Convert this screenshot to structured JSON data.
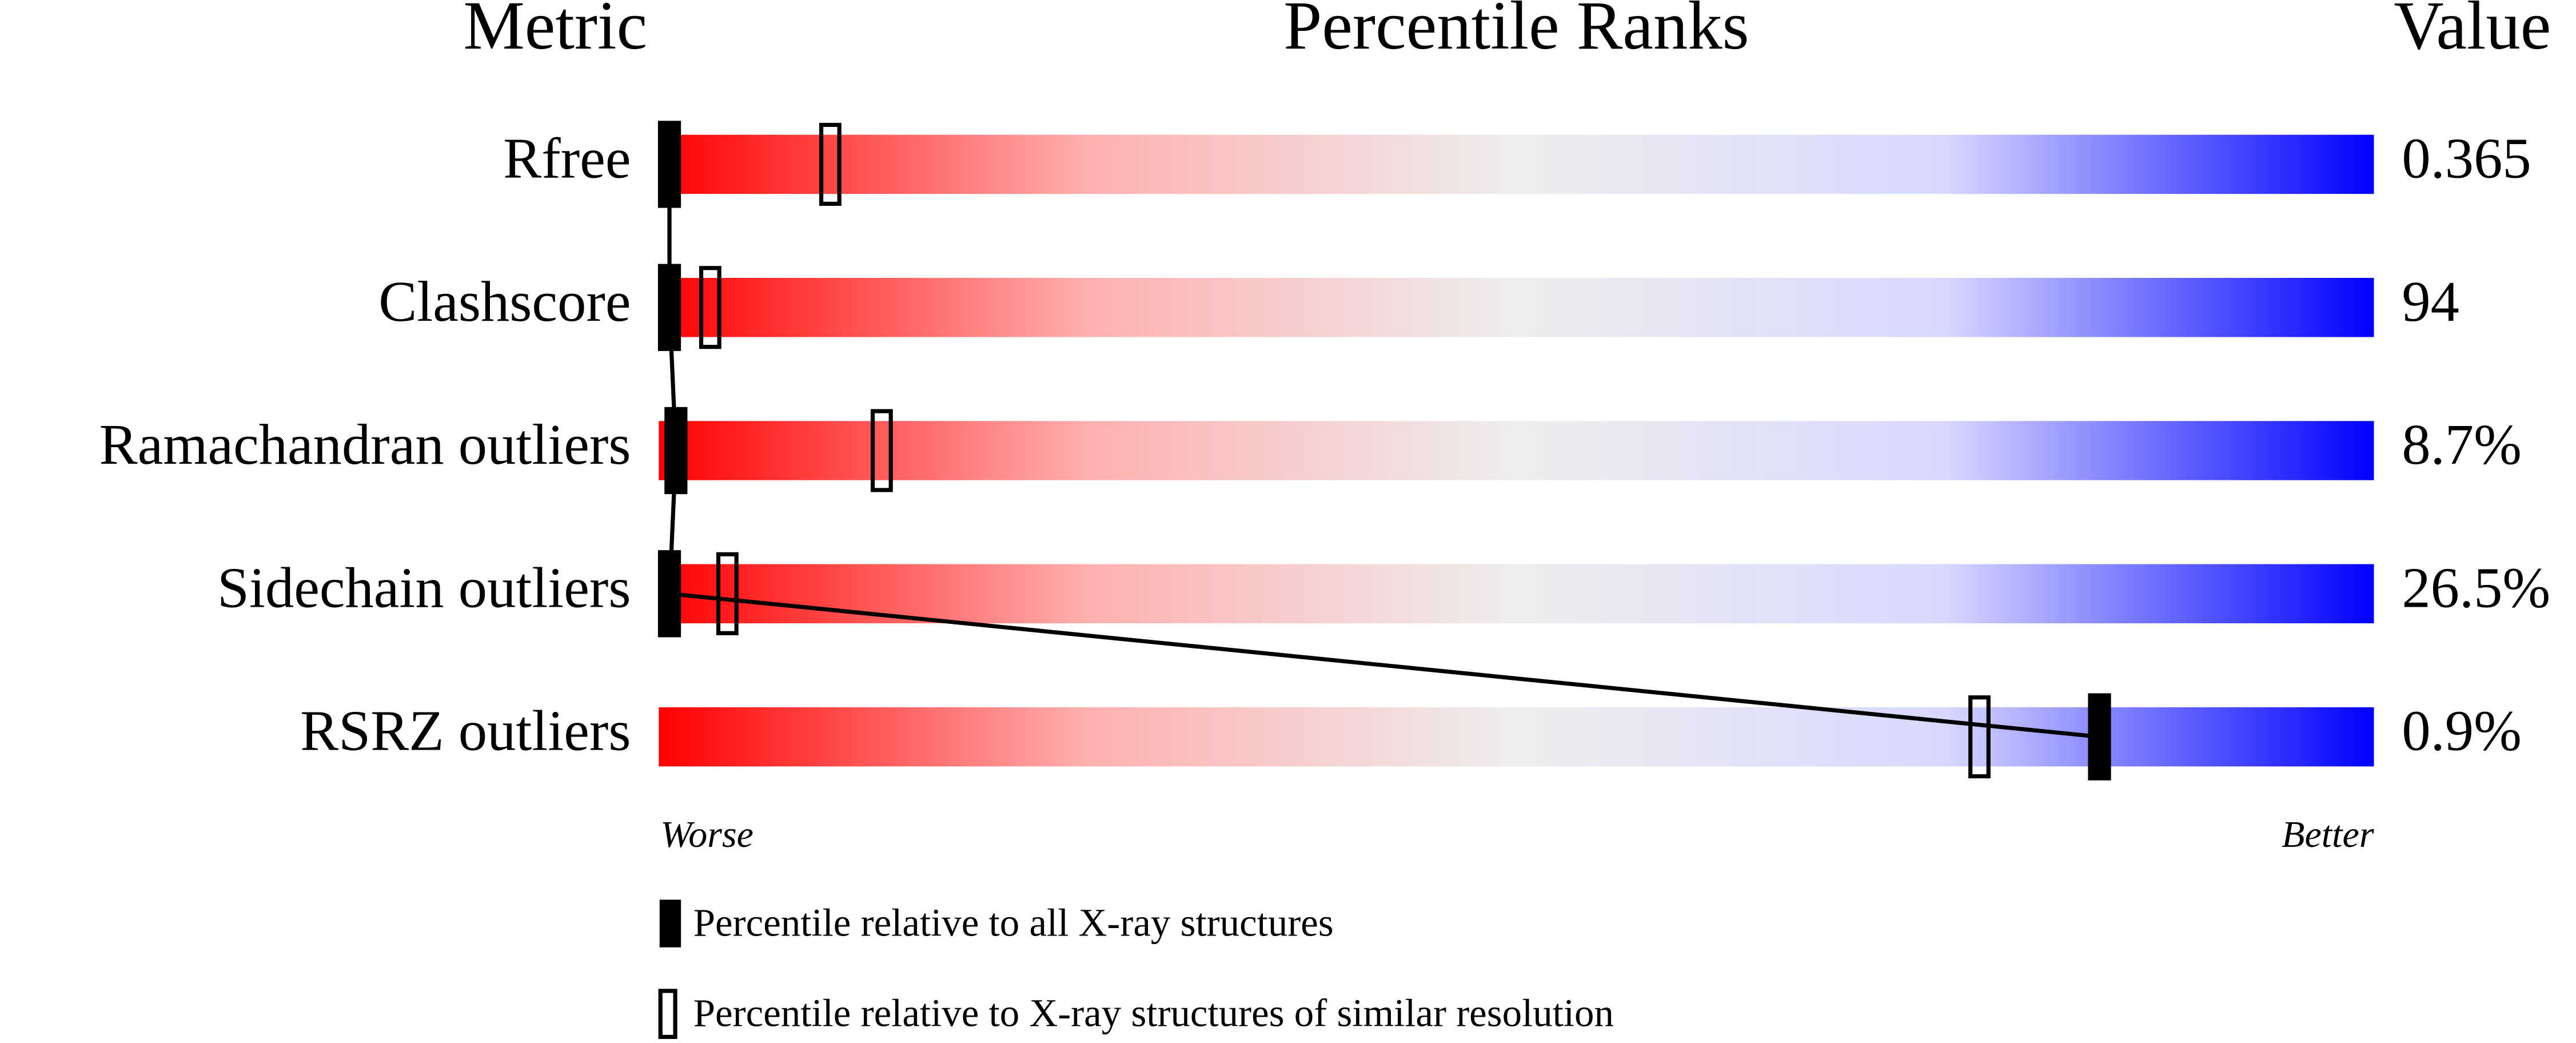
{
  "chart_data": {
    "type": "percentile",
    "headers": [
      "Metric",
      "Percentile Ranks",
      "Value"
    ],
    "categories": [
      "Rfree",
      "Clashscore",
      "Ramachandran outliers",
      "Sidechain outliers",
      "RSRZ outliers"
    ],
    "metric_values": [
      "0.365",
      "94",
      "8.7%",
      "26.5%",
      "0.9%"
    ],
    "xlim": [
      0,
      100
    ],
    "x_end_labels": [
      "Worse",
      "Better"
    ],
    "gradient": [
      "#ff0000",
      "#ffb0b0",
      "#eeeeee",
      "#d8d8ff",
      "#0000ff"
    ],
    "series": [
      {
        "name": "Percentile relative to all X-ray structures",
        "marker": "filled",
        "color": "#000000",
        "values": [
          0,
          0,
          1,
          0,
          84
        ]
      },
      {
        "name": "Percentile relative to X-ray structures of similar resolution",
        "marker": "open",
        "color": "#000000",
        "values": [
          10,
          3,
          13,
          4,
          77
        ]
      }
    ]
  }
}
